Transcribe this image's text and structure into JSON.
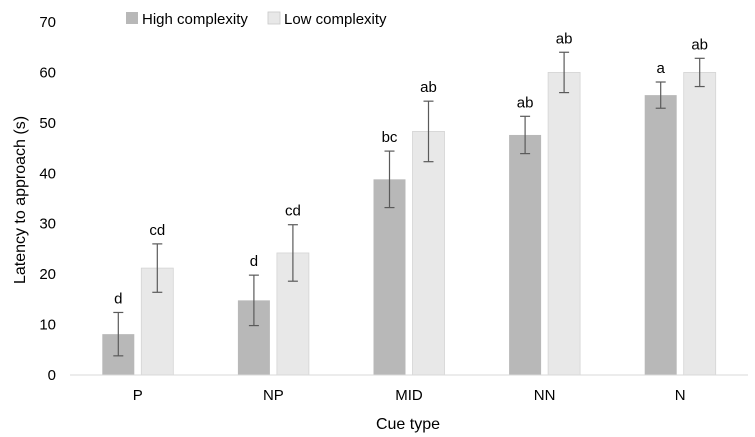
{
  "chart_data": {
    "type": "bar",
    "title": "",
    "xlabel": "Cue type",
    "ylabel": "Latency to approach (s)",
    "ylim": [
      0,
      70
    ],
    "yticks": [
      0,
      10,
      20,
      30,
      40,
      50,
      60,
      70
    ],
    "grid": false,
    "legend_position": "top-left",
    "categories": [
      "P",
      "NP",
      "MID",
      "NN",
      "N"
    ],
    "series": [
      {
        "name": "High complexity",
        "color": "#b8b8b8",
        "values": [
          8.1,
          14.8,
          38.8,
          47.6,
          55.5
        ],
        "error": [
          4.3,
          5.0,
          5.6,
          3.7,
          2.6
        ],
        "letters": [
          "d",
          "d",
          "bc",
          "ab",
          "a"
        ]
      },
      {
        "name": "Low complexity",
        "color": "#e8e8e8",
        "values": [
          21.2,
          24.2,
          48.3,
          60.0,
          60.0
        ],
        "error": [
          4.8,
          5.6,
          6.0,
          4.0,
          2.8
        ],
        "letters": [
          "cd",
          "cd",
          "ab",
          "ab",
          "ab"
        ]
      }
    ]
  }
}
